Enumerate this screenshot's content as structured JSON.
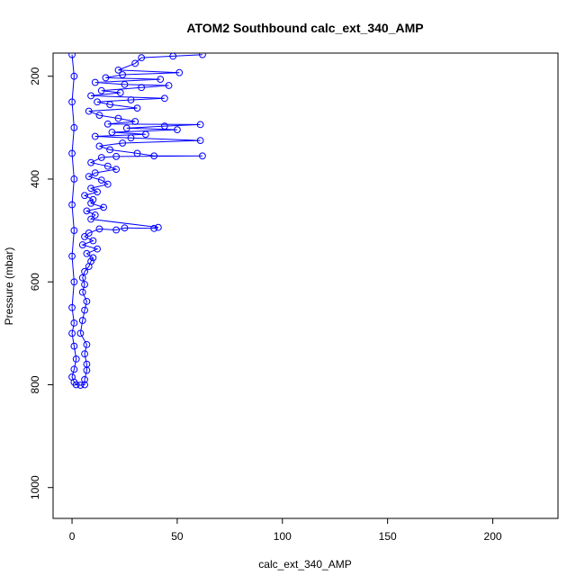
{
  "chart_data": {
    "type": "scatter",
    "title": "ATOM2 Southbound calc_ext_340_AMP",
    "xlabel": "calc_ext_340_AMP",
    "ylabel": "Pressure (mbar)",
    "xlim": [
      -9,
      231
    ],
    "ylim": [
      1060,
      155
    ],
    "y_reversed": true,
    "x_ticks": [
      0,
      50,
      100,
      150,
      200
    ],
    "y_ticks": [
      200,
      400,
      600,
      800,
      1000
    ],
    "grid": false,
    "legend": "none",
    "color": "#0000ff",
    "marker": "open-circle",
    "connected": true,
    "series": [
      {
        "points": [
          [
            62,
            158
          ],
          [
            48,
            161
          ],
          [
            33,
            164
          ],
          [
            30,
            175
          ],
          [
            22,
            188
          ],
          [
            51,
            193
          ],
          [
            24,
            197
          ],
          [
            16,
            203
          ],
          [
            42,
            206
          ],
          [
            11,
            212
          ],
          [
            25,
            216
          ],
          [
            46,
            218
          ],
          [
            33,
            222
          ],
          [
            14,
            228
          ],
          [
            23,
            232
          ],
          [
            9,
            238
          ],
          [
            44,
            243
          ],
          [
            28,
            246
          ],
          [
            12,
            250
          ],
          [
            18,
            255
          ],
          [
            31,
            262
          ],
          [
            8,
            268
          ],
          [
            13,
            276
          ],
          [
            22,
            282
          ],
          [
            30,
            288
          ],
          [
            17,
            293
          ],
          [
            61,
            294
          ],
          [
            44,
            297
          ],
          [
            26,
            301
          ],
          [
            50,
            304
          ],
          [
            19,
            309
          ],
          [
            35,
            313
          ],
          [
            11,
            317
          ],
          [
            28,
            320
          ],
          [
            61,
            325
          ],
          [
            24,
            330
          ],
          [
            13,
            336
          ],
          [
            18,
            343
          ],
          [
            31,
            350
          ],
          [
            39,
            355
          ],
          [
            62,
            355
          ],
          [
            21,
            356
          ],
          [
            14,
            358
          ],
          [
            9,
            368
          ],
          [
            17,
            375
          ],
          [
            21,
            381
          ],
          [
            11,
            388
          ],
          [
            8,
            395
          ],
          [
            14,
            402
          ],
          [
            17,
            410
          ],
          [
            9,
            418
          ],
          [
            12,
            425
          ],
          [
            6,
            432
          ],
          [
            10,
            440
          ],
          [
            9,
            447
          ],
          [
            15,
            455
          ],
          [
            7,
            462
          ],
          [
            11,
            470
          ],
          [
            9,
            478
          ],
          [
            41,
            494
          ],
          [
            39,
            496
          ],
          [
            25,
            495
          ],
          [
            21,
            499
          ],
          [
            13,
            497
          ],
          [
            8,
            505
          ],
          [
            6,
            512
          ],
          [
            10,
            520
          ],
          [
            5,
            528
          ],
          [
            12,
            536
          ],
          [
            7,
            545
          ],
          [
            10,
            553
          ],
          [
            9,
            560
          ],
          [
            8,
            570
          ],
          [
            6,
            580
          ],
          [
            5,
            592
          ],
          [
            6,
            605
          ],
          [
            5,
            620
          ],
          [
            7,
            638
          ],
          [
            6,
            655
          ],
          [
            5,
            675
          ],
          [
            4,
            700
          ],
          [
            7,
            722
          ],
          [
            6,
            740
          ],
          [
            7,
            760
          ],
          [
            7,
            772
          ],
          [
            6,
            790
          ],
          [
            6,
            800
          ],
          [
            4,
            801
          ],
          [
            2,
            800
          ],
          [
            1,
            795
          ],
          [
            0,
            785
          ],
          [
            1,
            770
          ],
          [
            2,
            750
          ],
          [
            1,
            725
          ],
          [
            0,
            700
          ],
          [
            1,
            680
          ],
          [
            0,
            650
          ],
          [
            1,
            600
          ],
          [
            0,
            550
          ],
          [
            1,
            500
          ],
          [
            0,
            450
          ],
          [
            1,
            400
          ],
          [
            0,
            350
          ],
          [
            1,
            300
          ],
          [
            0,
            250
          ],
          [
            1,
            200
          ],
          [
            0,
            158
          ]
        ]
      }
    ]
  }
}
